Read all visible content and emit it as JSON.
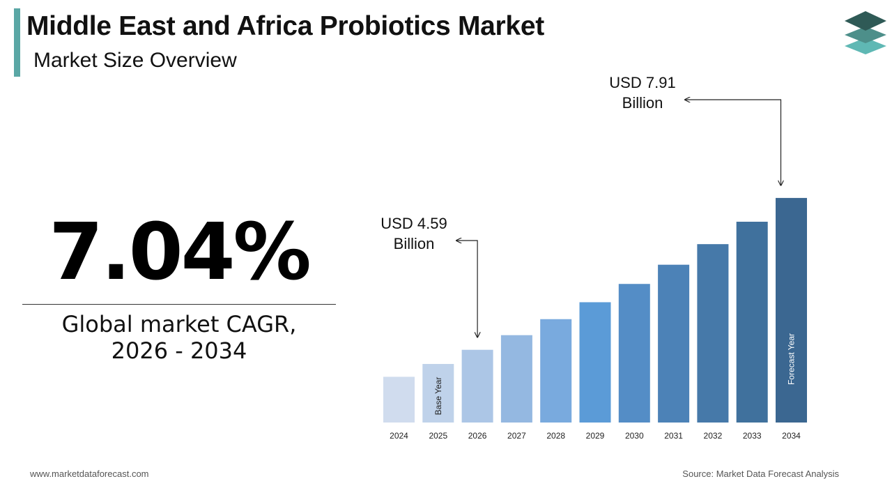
{
  "header": {
    "title": "Middle East and Africa Probiotics Market",
    "subtitle": "Market Size Overview"
  },
  "cagr": {
    "value": "7.04%",
    "label_line1": "Global market CAGR,",
    "label_line2": "2026 - 2034"
  },
  "footer": {
    "website": "www.marketdataforecast.com",
    "source": "Source: Market Data Forecast Analysis"
  },
  "logo": {
    "icon": "stacked-layers-icon",
    "colors": [
      "#2f5a56",
      "#4d8f8a",
      "#5fb8b4"
    ]
  },
  "chart_data": {
    "type": "bar",
    "categories": [
      "2024",
      "2025",
      "2026",
      "2027",
      "2028",
      "2029",
      "2030",
      "2031",
      "2032",
      "2033",
      "2034"
    ],
    "values": [
      4.0,
      4.28,
      4.59,
      4.91,
      5.26,
      5.63,
      6.03,
      6.45,
      6.9,
      7.39,
      7.91
    ],
    "colors": [
      "#d0dcee",
      "#bfd2ea",
      "#acc6e6",
      "#94b8e1",
      "#79aade",
      "#5b9bd7",
      "#548dc6",
      "#4c82b7",
      "#4679a9",
      "#40719d",
      "#3b6791"
    ],
    "bar_labels": {
      "1": "Base Year",
      "10": "Forecast Year"
    },
    "annotations": [
      {
        "category": "2026",
        "line1": "USD 4.59",
        "line2": "Billion"
      },
      {
        "category": "2034",
        "line1": "USD 7.91",
        "line2": "Billion"
      }
    ],
    "ylim": [
      3.0,
      8.0
    ]
  }
}
